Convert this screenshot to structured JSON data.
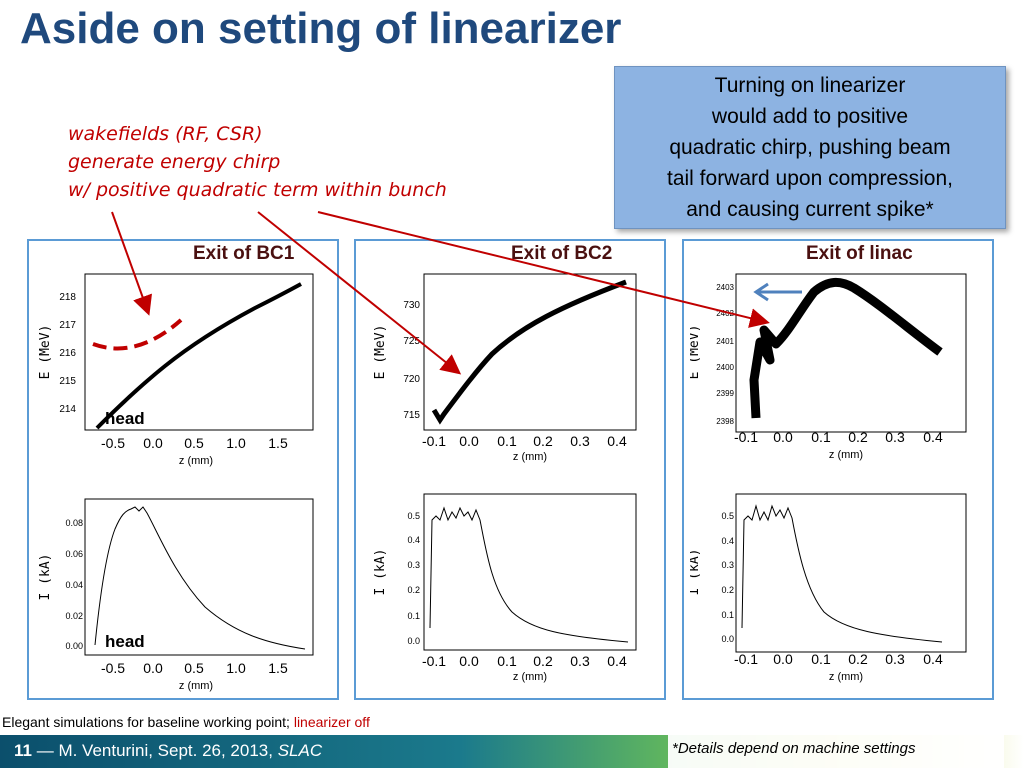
{
  "title": "Aside on setting of linearizer",
  "note": {
    "lines": [
      "Turning on linearizer",
      "would add to positive",
      "quadratic chirp, pushing beam",
      "tail forward upon compression,",
      "and causing current spike*"
    ]
  },
  "annotation": {
    "lines": [
      "wakefields (RF, CSR)",
      "generate energy chirp",
      "w/ positive quadratic term within bunch"
    ]
  },
  "panels": [
    {
      "title": "Exit of BC1",
      "energy_plot": {
        "ylabel": "E (MeV)",
        "xlabel": "z (mm)",
        "xticks": [
          "-0.5",
          "0.0",
          "0.5",
          "1.0",
          "1.5"
        ],
        "yticks": [
          "214",
          "215",
          "216",
          "217",
          "218"
        ],
        "marker_label": "head"
      },
      "current_plot": {
        "ylabel": "I (kA)",
        "xlabel": "z (mm)",
        "xticks": [
          "-0.5",
          "0.0",
          "0.5",
          "1.0",
          "1.5"
        ],
        "yticks": [
          "0.00",
          "0.02",
          "0.04",
          "0.06",
          "0.08"
        ],
        "marker_label": "head"
      }
    },
    {
      "title": "Exit of BC2",
      "energy_plot": {
        "ylabel": "E (MeV)",
        "xlabel": "z (mm)",
        "xticks": [
          "-0.1",
          "0.0",
          "0.1",
          "0.2",
          "0.3",
          "0.4"
        ],
        "yticks": [
          "715",
          "720",
          "725",
          "730"
        ]
      },
      "current_plot": {
        "ylabel": "I (kA)",
        "xlabel": "z (mm)",
        "xticks": [
          "-0.1",
          "0.0",
          "0.1",
          "0.2",
          "0.3",
          "0.4"
        ],
        "yticks": [
          "0.0",
          "0.1",
          "0.2",
          "0.3",
          "0.4",
          "0.5"
        ]
      }
    },
    {
      "title": "Exit of linac",
      "energy_plot": {
        "ylabel": "E (MeV)",
        "xlabel": "z (mm)",
        "xticks": [
          "-0.1",
          "0.0",
          "0.1",
          "0.2",
          "0.3",
          "0.4"
        ],
        "yticks": [
          "2398",
          "2399",
          "2400",
          "2401",
          "2402",
          "2403"
        ]
      },
      "current_plot": {
        "ylabel": "I (kA)",
        "xlabel": "z (mm)",
        "xticks": [
          "-0.1",
          "0.0",
          "0.1",
          "0.2",
          "0.3",
          "0.4"
        ],
        "yticks": [
          "0.0",
          "0.1",
          "0.2",
          "0.3",
          "0.4",
          "0.5"
        ]
      }
    }
  ],
  "caption": {
    "text": "Elegant simulations for baseline working point; ",
    "highlight": "linearizer off"
  },
  "footer": {
    "page": "11",
    "dash": "—",
    "author": "M. Venturini, Sept. 26, 2013, ",
    "org": "SLAC"
  },
  "detail_note": "*Details depend on machine settings",
  "colors": {
    "title": "#1f497d",
    "note_bg": "#8db3e2",
    "annotation": "#c00000",
    "panel_border": "#5b9bd5",
    "arrow": "#c00000",
    "footer": "#0d5a7a"
  }
}
